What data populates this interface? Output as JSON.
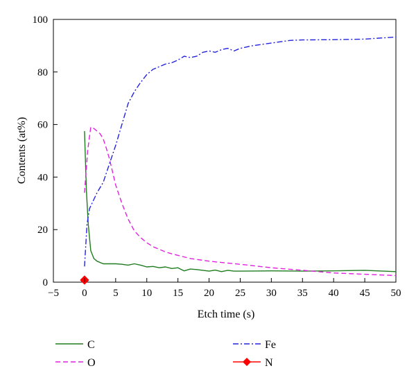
{
  "chart_data": {
    "type": "line",
    "xlabel": "Etch time (s)",
    "ylabel": "Contents (at%)",
    "xlim": [
      -5,
      50
    ],
    "ylim": [
      0,
      100
    ],
    "xticks": [
      -5,
      0,
      5,
      10,
      15,
      20,
      25,
      30,
      35,
      40,
      45,
      50
    ],
    "yticks": [
      0,
      20,
      40,
      60,
      80,
      100
    ],
    "grid": false,
    "legend_position": "bottom",
    "series": [
      {
        "name": "C",
        "color": "#1e7b1e",
        "style": "solid",
        "x": [
          0,
          0.3,
          0.6,
          1,
          1.5,
          2,
          3,
          4,
          5,
          6,
          7,
          8,
          9,
          10,
          11,
          12,
          13,
          14,
          15,
          16,
          17,
          18,
          19,
          20,
          21,
          22,
          23,
          24,
          25,
          30,
          35,
          40,
          45,
          50
        ],
        "y": [
          57.5,
          35,
          22,
          12,
          9,
          8,
          7,
          7,
          7,
          6.8,
          6.5,
          7,
          6.5,
          5.8,
          6,
          5.5,
          5.8,
          5.2,
          5.5,
          4.3,
          5,
          4.8,
          4.5,
          4.2,
          4.6,
          4,
          4.5,
          4.2,
          4.2,
          4.3,
          4.2,
          4.3,
          4.5,
          4
        ]
      },
      {
        "name": "O",
        "color": "#e020e0",
        "style": "dashed",
        "x": [
          0,
          0.5,
          1,
          1.5,
          2,
          2.5,
          3,
          3.5,
          4,
          4.5,
          5,
          6,
          7,
          8,
          9,
          10,
          11,
          12,
          13,
          14,
          15,
          17,
          20,
          22,
          25,
          30,
          35,
          40,
          45,
          50
        ],
        "y": [
          34,
          50,
          59,
          58.5,
          57.5,
          56.5,
          54.5,
          51,
          47,
          42,
          37,
          30,
          24,
          19.5,
          17,
          15,
          13.5,
          12.5,
          11.5,
          10.8,
          10.2,
          9,
          8,
          7.5,
          6.8,
          5.5,
          4.5,
          3.5,
          3,
          2.5
        ]
      },
      {
        "name": "Fe",
        "color": "#2222dd",
        "style": "dashdot",
        "x": [
          0,
          0.4,
          0.8,
          1.2,
          2,
          3,
          4,
          5,
          6,
          7,
          8,
          9,
          10,
          11,
          12,
          13,
          14,
          15,
          16,
          17,
          18,
          19,
          20,
          21,
          22,
          23,
          24,
          25,
          27,
          30,
          33,
          35,
          40,
          45,
          50
        ],
        "y": [
          6,
          22,
          28,
          30,
          34,
          38,
          45,
          52,
          60,
          68,
          72.5,
          76,
          79,
          81,
          82,
          83,
          83.5,
          84.5,
          86,
          85.5,
          86,
          87.5,
          88,
          87.5,
          88.5,
          89,
          88,
          89,
          90,
          91,
          92,
          92.2,
          92.3,
          92.5,
          93.3
        ]
      },
      {
        "name": "N",
        "color": "#ff0000",
        "style": "marker-diamond",
        "x": [
          0
        ],
        "y": [
          0.8
        ]
      }
    ]
  }
}
